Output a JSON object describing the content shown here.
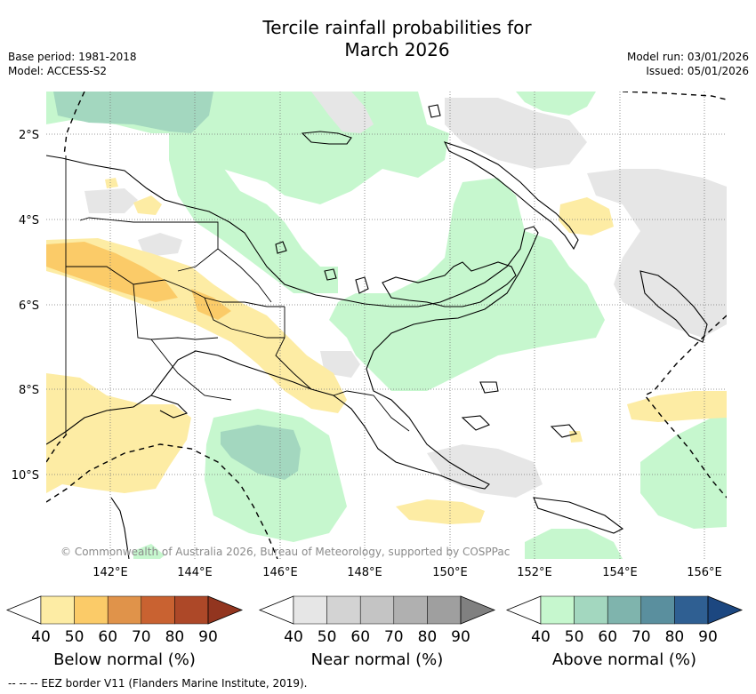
{
  "title_line1": "Tercile rainfall probabilities for",
  "title_line2": "March 2026",
  "meta_left": [
    "Base period: 1981-2018",
    "Model: ACCESS-S2"
  ],
  "meta_right": [
    "Model run: 03/01/2026",
    "Issued: 05/01/2026"
  ],
  "lat_labels": [
    "2°S",
    "4°S",
    "6°S",
    "8°S",
    "10°S"
  ],
  "lon_labels": [
    "142°E",
    "144°E",
    "146°E",
    "148°E",
    "150°E",
    "152°E",
    "154°E",
    "156°E"
  ],
  "copyright": "© Commonwealth of Australia 2026, Bureau of Meteorology, supported by COSPPac",
  "footer": "--  --  -- EEZ border V11 (Flanders Marine Institute, 2019).",
  "colorbars": [
    {
      "title": "Below normal (%)",
      "ticks": [
        "40",
        "50",
        "60",
        "70",
        "80",
        "90"
      ],
      "colors": [
        "#fdeca4",
        "#fbcb68",
        "#e0934a",
        "#c96231",
        "#ad4828",
        "#92351f"
      ]
    },
    {
      "title": "Near normal (%)",
      "ticks": [
        "40",
        "50",
        "60",
        "70",
        "80",
        "90"
      ],
      "colors": [
        "#e6e6e6",
        "#d3d3d3",
        "#c4c4c4",
        "#b0b0b0",
        "#9f9f9f",
        "#808080"
      ]
    },
    {
      "title": "Above normal (%)",
      "ticks": [
        "40",
        "50",
        "60",
        "70",
        "80",
        "90"
      ],
      "colors": [
        "#c6f7ce",
        "#a3d7bf",
        "#7fb4ad",
        "#5a8f9e",
        "#2f5f92",
        "#1c4780"
      ]
    }
  ]
}
